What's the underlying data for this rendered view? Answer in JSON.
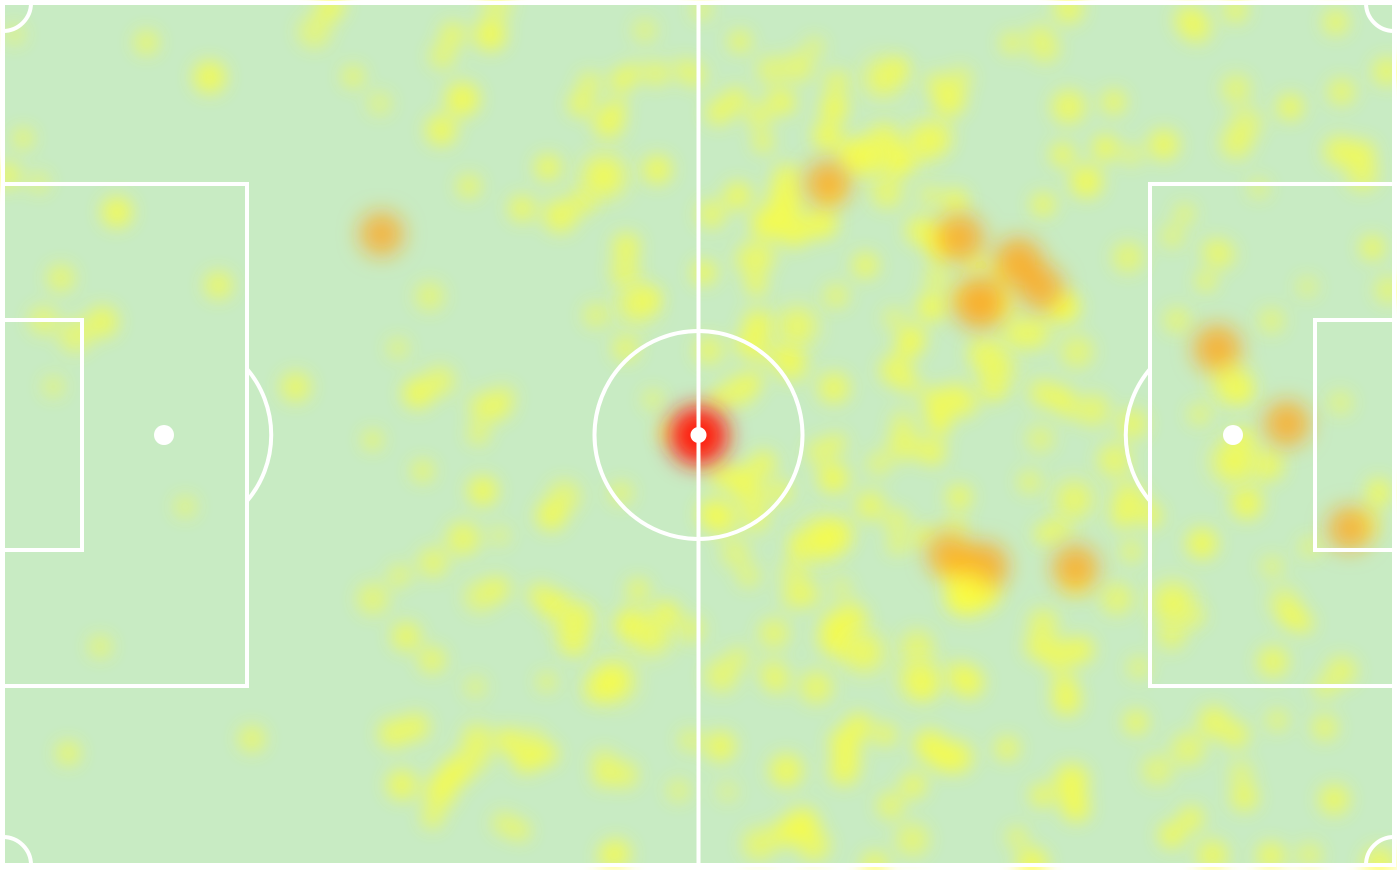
{
  "chart_data": {
    "type": "heatmap",
    "title": "",
    "xlabel": "",
    "ylabel": "",
    "xlim": [
      0,
      100
    ],
    "ylim": [
      0,
      100
    ],
    "grid": false,
    "legend": "none",
    "colors": {
      "pitch": "#c8ebc3",
      "lines": "#ffffff",
      "low": "#ffff33",
      "mid": "#ffa61a",
      "high": "#ff1a0d"
    },
    "hotspots": [
      {
        "x": 50.0,
        "y": 50.2,
        "v": 1.0
      },
      {
        "x": 70.2,
        "y": 34.8,
        "v": 0.72
      },
      {
        "x": 68.8,
        "y": 27.2,
        "v": 0.6
      },
      {
        "x": 73.0,
        "y": 30.0,
        "v": 0.62
      },
      {
        "x": 74.6,
        "y": 33.0,
        "v": 0.55
      },
      {
        "x": 59.3,
        "y": 20.9,
        "v": 0.55
      },
      {
        "x": 62.4,
        "y": 17.8,
        "v": 0.35
      },
      {
        "x": 66.2,
        "y": 16.2,
        "v": 0.3
      },
      {
        "x": 87.3,
        "y": 40.1,
        "v": 0.6
      },
      {
        "x": 92.3,
        "y": 48.8,
        "v": 0.55
      },
      {
        "x": 88.5,
        "y": 53.2,
        "v": 0.45
      },
      {
        "x": 96.8,
        "y": 61.0,
        "v": 0.5
      },
      {
        "x": 70.5,
        "y": 65.4,
        "v": 0.65
      },
      {
        "x": 68.0,
        "y": 64.0,
        "v": 0.5
      },
      {
        "x": 69.5,
        "y": 68.5,
        "v": 0.45
      },
      {
        "x": 77.1,
        "y": 65.5,
        "v": 0.55
      },
      {
        "x": 58.8,
        "y": 62.3,
        "v": 0.45
      },
      {
        "x": 61.9,
        "y": 75.3,
        "v": 0.35
      },
      {
        "x": 65.9,
        "y": 78.4,
        "v": 0.35
      },
      {
        "x": 43.9,
        "y": 78.7,
        "v": 0.4
      },
      {
        "x": 46.6,
        "y": 73.4,
        "v": 0.3
      },
      {
        "x": 43.2,
        "y": 20.1,
        "v": 0.45
      },
      {
        "x": 45.6,
        "y": 34.9,
        "v": 0.3
      },
      {
        "x": 27.2,
        "y": 26.8,
        "v": 0.5
      },
      {
        "x": 63.3,
        "y": 8.7,
        "v": 0.3
      },
      {
        "x": 57.1,
        "y": 37.5,
        "v": 0.3
      },
      {
        "x": 77.0,
        "y": 57.6,
        "v": 0.25
      },
      {
        "x": 84.1,
        "y": 69.6,
        "v": 0.4
      },
      {
        "x": 88.3,
        "y": 44.2,
        "v": 0.3
      },
      {
        "x": 71.5,
        "y": 42.3,
        "v": 0.2
      },
      {
        "x": 41.0,
        "y": 72.0,
        "v": 0.25
      }
    ]
  }
}
